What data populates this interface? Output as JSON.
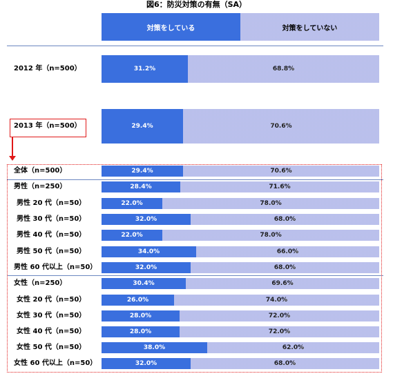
{
  "chart_data": {
    "type": "bar",
    "stacked": true,
    "orientation": "horizontal",
    "title": "図6：防災対策の有無（SA）",
    "series": [
      {
        "name": "対策をしている",
        "color": "#3a6fde"
      },
      {
        "name": "対策をしていない",
        "color": "#7b85d6"
      }
    ],
    "rows": [
      {
        "label": "2012 年（n=500）",
        "do": 31.2,
        "not": 68.8
      },
      {
        "label": "2013 年（n=500）",
        "do": 29.4,
        "not": 70.6
      },
      {
        "label": "全体（n=500）",
        "do": 29.4,
        "not": 70.6
      },
      {
        "label": "男性（n=250）",
        "do": 28.4,
        "not": 71.6
      },
      {
        "label": "男性 20 代（n=50）",
        "do": 22.0,
        "not": 78.0
      },
      {
        "label": "男性 30 代（n=50）",
        "do": 32.0,
        "not": 68.0
      },
      {
        "label": "男性 40 代（n=50）",
        "do": 22.0,
        "not": 78.0
      },
      {
        "label": "男性 50 代（n=50）",
        "do": 34.0,
        "not": 66.0
      },
      {
        "label": "男性 60 代以上（n=50）",
        "do": 32.0,
        "not": 68.0
      },
      {
        "label": "女性（n=250）",
        "do": 30.4,
        "not": 69.6
      },
      {
        "label": "女性 20 代（n=50）",
        "do": 26.0,
        "not": 74.0
      },
      {
        "label": "女性 30 代（n=50）",
        "do": 28.0,
        "not": 72.0
      },
      {
        "label": "女性 40 代（n=50）",
        "do": 28.0,
        "not": 72.0
      },
      {
        "label": "女性 50 代（n=50）",
        "do": 38.0,
        "not": 62.0
      },
      {
        "label": "女性 60 代以上（n=50）",
        "do": 32.0,
        "not": 68.0
      }
    ],
    "value_format": "0.0%",
    "xlim": [
      0,
      100
    ]
  }
}
